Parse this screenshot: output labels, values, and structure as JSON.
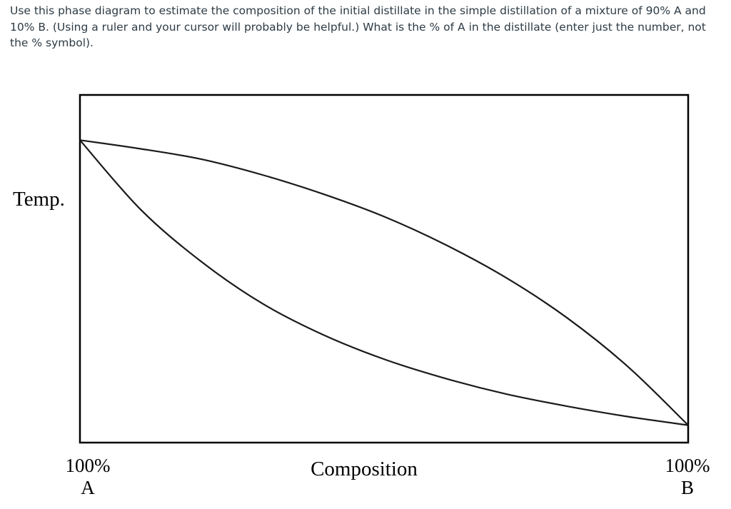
{
  "question": {
    "text": "Use this phase diagram to estimate the composition of the initial distillate in the simple distillation of a mixture of 90% A and 10% B. (Using a ruler and your cursor will probably be helpful.) What is the % of A in the distillate (enter just the number, not the % symbol)."
  },
  "chart_data": {
    "type": "line",
    "title": "",
    "xlabel": "Composition",
    "ylabel": "Temp.",
    "x_left_label": [
      "100%",
      "A"
    ],
    "x_right_label": [
      "100%",
      "B"
    ],
    "x_range": [
      0,
      100
    ],
    "y_range": [
      0,
      100
    ],
    "grid": false,
    "legend": "none",
    "x_units": "% B",
    "y_units": "relative temperature (0 = bottom of frame, 100 = top of frame)",
    "series": [
      {
        "x": [
          0,
          10,
          20,
          30,
          40,
          50,
          60,
          70,
          80,
          90,
          100
        ],
        "y": [
          87,
          84.5,
          81.5,
          77,
          71.5,
          65,
          57,
          47.5,
          36,
          22,
          5
        ]
      },
      {
        "x": [
          0,
          10,
          20,
          30,
          40,
          50,
          60,
          70,
          80,
          90,
          100
        ],
        "y": [
          87,
          67,
          52,
          40,
          31,
          24,
          18.5,
          14,
          10.5,
          7.5,
          5
        ]
      }
    ]
  }
}
